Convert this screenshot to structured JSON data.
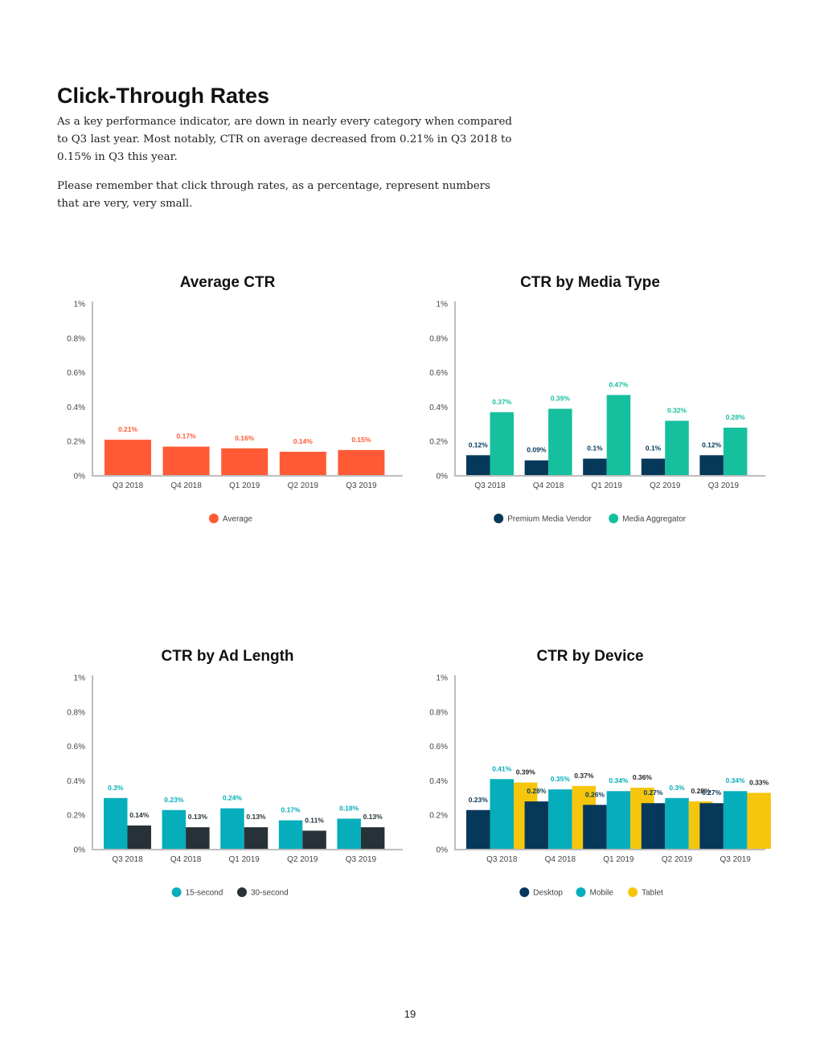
{
  "heading": "Click-Through Rates",
  "paragraphs": [
    "As a key performance indicator, are down in nearly every category when compared to Q3 last year. Most notably, CTR on average decreased from 0.21% in Q3 2018 to 0.15% in Q3 this year.",
    "Please remember that click through rates, as a percentage, represent numbers that are very, very small."
  ],
  "page_number": "19",
  "chart_data": [
    {
      "type": "bar",
      "title": "Average CTR",
      "categories": [
        "Q3 2018",
        "Q4 2018",
        "Q1 2019",
        "Q2 2019",
        "Q3 2019"
      ],
      "yticks": [
        "0%",
        "0.2%",
        "0.4%",
        "0.6%",
        "0.8%",
        "1%"
      ],
      "ylim": [
        0,
        1
      ],
      "xlabel": "",
      "ylabel": "",
      "legend_position": "bottom",
      "series": [
        {
          "name": "Average",
          "color": "#ff5a35",
          "label_color": "#ff5a35",
          "values": [
            0.21,
            0.17,
            0.16,
            0.14,
            0.15
          ],
          "labels": [
            "0.21%",
            "0.17%",
            "0.16%",
            "0.14%",
            "0.15%"
          ]
        }
      ]
    },
    {
      "type": "bar",
      "title": "CTR by Media Type",
      "categories": [
        "Q3 2018",
        "Q4 2018",
        "Q1 2019",
        "Q2 2019",
        "Q3 2019"
      ],
      "yticks": [
        "0%",
        "0.2%",
        "0.4%",
        "0.6%",
        "0.8%",
        "1%"
      ],
      "ylim": [
        0,
        1
      ],
      "xlabel": "",
      "ylabel": "",
      "legend_position": "bottom",
      "series": [
        {
          "name": "Premium Media Vendor",
          "color": "#06385a",
          "label_color": "#06385a",
          "values": [
            0.12,
            0.09,
            0.1,
            0.1,
            0.12
          ],
          "labels": [
            "0.12%",
            "0.09%",
            "0.1%",
            "0.1%",
            "0.12%"
          ]
        },
        {
          "name": "Media Aggregator",
          "color": "#16bf9e",
          "label_color": "#16bf9e",
          "values": [
            0.37,
            0.39,
            0.47,
            0.32,
            0.28
          ],
          "labels": [
            "0.37%",
            "0.39%",
            "0.47%",
            "0.32%",
            "0.28%"
          ]
        }
      ]
    },
    {
      "type": "bar",
      "title": "CTR by Ad Length",
      "categories": [
        "Q3 2018",
        "Q4 2018",
        "Q1 2019",
        "Q2 2019",
        "Q3 2019"
      ],
      "yticks": [
        "0%",
        "0.2%",
        "0.4%",
        "0.6%",
        "0.8%",
        "1%"
      ],
      "ylim": [
        0,
        1
      ],
      "xlabel": "",
      "ylabel": "",
      "legend_position": "bottom",
      "series": [
        {
          "name": "15-second",
          "color": "#06aebb",
          "label_color": "#06aebb",
          "values": [
            0.3,
            0.23,
            0.24,
            0.17,
            0.18
          ],
          "labels": [
            "0.3%",
            "0.23%",
            "0.24%",
            "0.17%",
            "0.18%"
          ]
        },
        {
          "name": "30-second",
          "color": "#263238",
          "label_color": "#263238",
          "values": [
            0.14,
            0.13,
            0.13,
            0.11,
            0.13
          ],
          "labels": [
            "0.14%",
            "0.13%",
            "0.13%",
            "0.11%",
            "0.13%"
          ]
        }
      ]
    },
    {
      "type": "bar",
      "title": "CTR by Device",
      "categories": [
        "Q3 2018",
        "Q4 2018",
        "Q1 2019",
        "Q2 2019",
        "Q3 2019"
      ],
      "yticks": [
        "0%",
        "0.2%",
        "0.4%",
        "0.6%",
        "0.8%",
        "1%"
      ],
      "ylim": [
        0,
        1
      ],
      "xlabel": "",
      "ylabel": "",
      "legend_position": "bottom",
      "series": [
        {
          "name": "Desktop",
          "color": "#06385a",
          "label_color": "#06385a",
          "values": [
            0.23,
            0.28,
            0.26,
            0.27,
            0.27
          ],
          "labels": [
            "0.23%",
            "0.28%",
            "0.26%",
            "0.27%",
            "0.27%"
          ]
        },
        {
          "name": "Mobile",
          "color": "#06aebb",
          "label_color": "#06aebb",
          "values": [
            0.41,
            0.35,
            0.34,
            0.3,
            0.34
          ],
          "labels": [
            "0.41%",
            "0.35%",
            "0.34%",
            "0.3%",
            "0.34%"
          ]
        },
        {
          "name": "Tablet",
          "color": "#f5c60c",
          "label_color": "#222222",
          "values": [
            0.39,
            0.37,
            0.36,
            0.28,
            0.33
          ],
          "labels": [
            "0.39%",
            "0.37%",
            "0.36%",
            "0.28%",
            "0.33%"
          ]
        }
      ]
    }
  ]
}
